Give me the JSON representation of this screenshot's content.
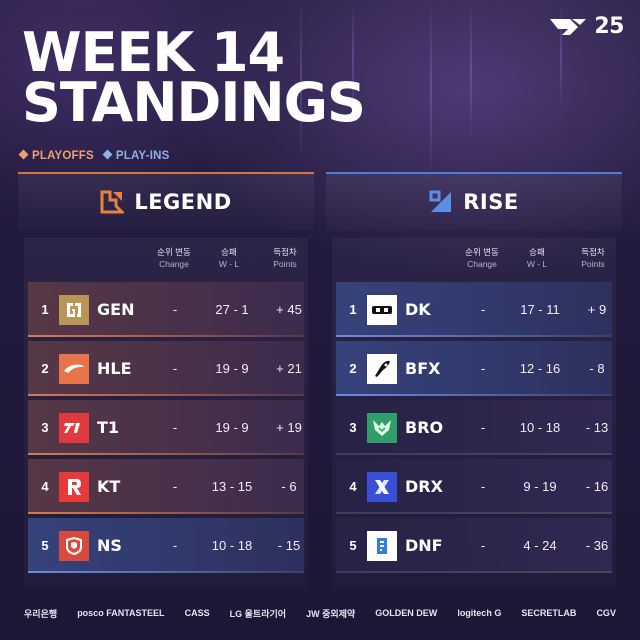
{
  "brand": {
    "number": "25"
  },
  "title": {
    "line1": "WEEK 14",
    "line2": "STANDINGS"
  },
  "legend": {
    "playoffs": "PLAYOFFS",
    "playins": "PLAY-INS",
    "playoffs_color": "#f0a070",
    "playins_color": "#8fb0e8"
  },
  "columns": {
    "change_ko": "순위 변동",
    "change_en": "Change",
    "wl_ko": "승패",
    "wl_en": "W - L",
    "points_ko": "득점차",
    "points_en": "Points"
  },
  "groups": [
    {
      "name": "LEGEND",
      "accent": "#d6743d",
      "teams": [
        {
          "rank": "1",
          "team": "GEN",
          "change": "-",
          "wl": "27 - 1",
          "points": "+ 45",
          "logo_color": "#b9955a",
          "status": "playoffs"
        },
        {
          "rank": "2",
          "team": "HLE",
          "change": "-",
          "wl": "19 - 9",
          "points": "+ 21",
          "logo_color": "#e8744a",
          "status": "playoffs"
        },
        {
          "rank": "3",
          "team": "T1",
          "change": "-",
          "wl": "19 - 9",
          "points": "+ 19",
          "logo_color": "#e03a3e",
          "status": "playoffs"
        },
        {
          "rank": "4",
          "team": "KT",
          "change": "-",
          "wl": "13 - 15",
          "points": "- 6",
          "logo_color": "#e63a3a",
          "status": "playoffs"
        },
        {
          "rank": "5",
          "team": "NS",
          "change": "-",
          "wl": "10 - 18",
          "points": "- 15",
          "logo_color": "#d94a3c",
          "status": "playins"
        }
      ]
    },
    {
      "name": "RISE",
      "accent": "#4b7fd6",
      "teams": [
        {
          "rank": "1",
          "team": "DK",
          "change": "-",
          "wl": "17 - 11",
          "points": "+ 9",
          "logo_color": "#ffffff",
          "status": "playins"
        },
        {
          "rank": "2",
          "team": "BFX",
          "change": "-",
          "wl": "12 - 16",
          "points": "- 8",
          "logo_color": "#ffffff",
          "status": "playins"
        },
        {
          "rank": "3",
          "team": "BRO",
          "change": "-",
          "wl": "10 - 18",
          "points": "- 13",
          "logo_color": "#2f9e6a",
          "status": "none"
        },
        {
          "rank": "4",
          "team": "DRX",
          "change": "-",
          "wl": "9 - 19",
          "points": "- 16",
          "logo_color": "#3a4fd8",
          "status": "none"
        },
        {
          "rank": "5",
          "team": "DNF",
          "change": "-",
          "wl": "4 - 24",
          "points": "- 36",
          "logo_color": "#ffffff",
          "status": "none"
        }
      ]
    }
  ],
  "sponsors": [
    "우리은행",
    "posco FANTASTEEL",
    "CASS",
    "LG 울트라기어",
    "JW 중외제약",
    "GOLDEN DEW",
    "logitech G",
    "SECRETLAB",
    "CGV"
  ]
}
